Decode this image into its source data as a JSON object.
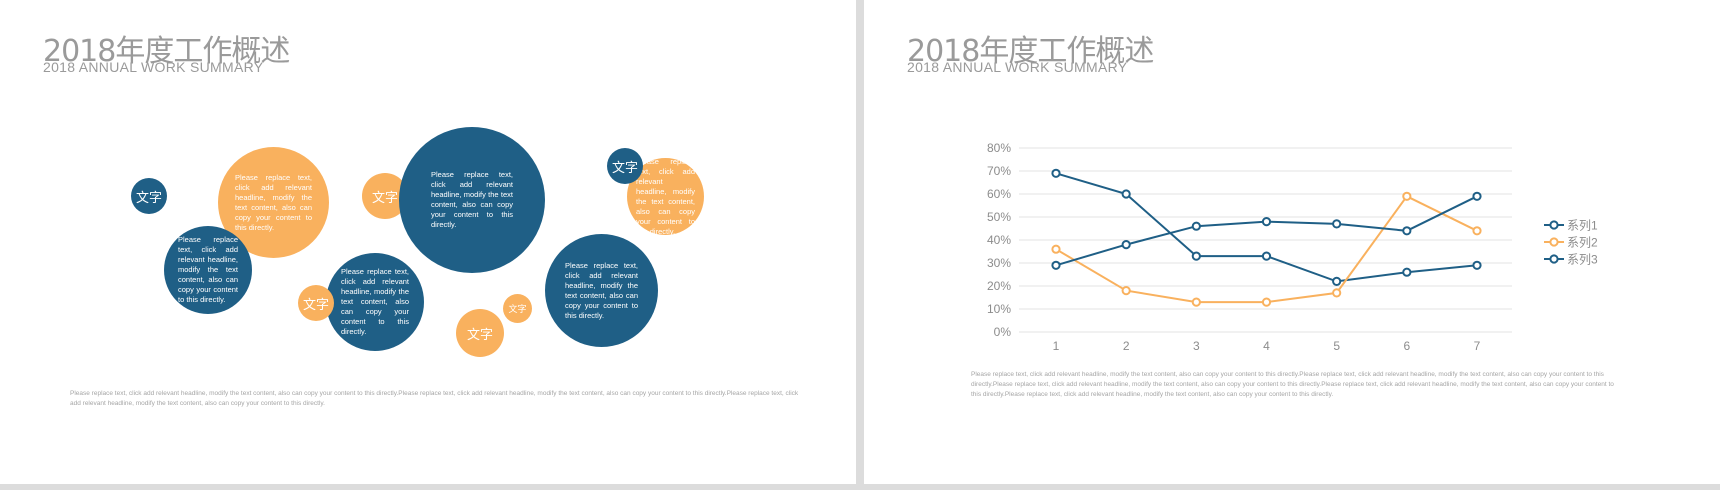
{
  "left": {
    "title": "2018年度工作概述",
    "subtitle": "2018 ANNUAL WORK SUMMARY",
    "label": "文字",
    "bubble_text": "Please replace text, click add relevant headline, modify the text content, also can copy your content to this directly.",
    "footer": "Please replace text, click add relevant headline, modify the text content, also can copy your content to this directly.Please replace text, click add relevant headline, modify the text content, also can copy your content to this directly.Please replace text, click add relevant headline, modify the text content, also can copy your content to this directly.",
    "colors": {
      "blue": "#1f5f86",
      "orange": "#f9b15e"
    }
  },
  "right": {
    "title": "2018年度工作概述",
    "subtitle": "2018 ANNUAL WORK SUMMARY",
    "footer": "Please replace text, click add relevant headline, modify the text content, also can copy your content to this directly.Please replace text, click add relevant headline, modify the text content, also can copy your content to this directly.Please replace text, click add relevant headline, modify the text content, also can copy your content to this directly.Please replace text, click add relevant headline, modify the text content, also can copy your content to this directly.Please replace text, click add relevant headline, modify the text content, also can copy your content to this directly."
  },
  "chart_data": {
    "type": "line",
    "x": [
      1,
      2,
      3,
      4,
      5,
      6,
      7
    ],
    "ylim": [
      0,
      80
    ],
    "y_ticks": [
      "0%",
      "10%",
      "20%",
      "30%",
      "40%",
      "50%",
      "60%",
      "70%",
      "80%"
    ],
    "grid": true,
    "legend_position": "right",
    "series": [
      {
        "name": "系列1",
        "color": "#1f5f86",
        "values": [
          69,
          60,
          33,
          33,
          22,
          26,
          29
        ]
      },
      {
        "name": "系列2",
        "color": "#f9b15e",
        "values": [
          36,
          18,
          13,
          13,
          17,
          59,
          44
        ]
      },
      {
        "name": "系列3",
        "color": "#1f5f86",
        "values": [
          29,
          38,
          46,
          48,
          47,
          44,
          59
        ]
      }
    ]
  }
}
